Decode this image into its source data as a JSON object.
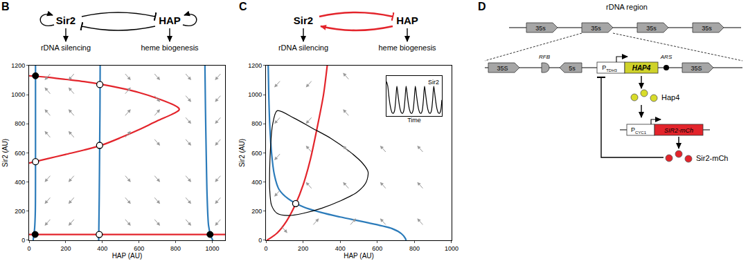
{
  "chart_data": [
    {
      "type": "line",
      "x_label": "HAP (AU)",
      "y_label": "Sir2 (AU)",
      "xlim": [
        0,
        1070
      ],
      "ylim": [
        0,
        1200
      ],
      "xticks": [
        0,
        200,
        400,
        600,
        800,
        1000
      ],
      "yticks": [
        0,
        200,
        400,
        600,
        800,
        1000,
        1200
      ],
      "grid": false,
      "series": [
        {
          "type": "line",
          "color": "#2b7bba",
          "x": [
            35,
            35,
            34,
            30,
            22
          ],
          "values": [
            1200,
            600,
            200,
            80,
            0
          ]
        },
        {
          "type": "line",
          "color": "#2b7bba",
          "x": [
            388,
            387,
            385,
            383,
            380
          ],
          "values": [
            1200,
            900,
            600,
            300,
            0
          ]
        },
        {
          "type": "line",
          "color": "#2b7bba",
          "x": [
            960,
            963,
            967,
            972,
            980,
            992,
            1003
          ],
          "values": [
            1200,
            900,
            600,
            300,
            100,
            30,
            0
          ]
        },
        {
          "type": "line",
          "color": "#e3242b",
          "x": [
            0,
            1070
          ],
          "values": [
            40,
            40
          ]
        },
        {
          "type": "line",
          "color": "#e3242b",
          "x": [
            0,
            100,
            200,
            300,
            400,
            500,
            600,
            700,
            780,
            815,
            820,
            815,
            780,
            700,
            600,
            500,
            400,
            300,
            200,
            100,
            0
          ],
          "values": [
            1130,
            1120,
            1105,
            1090,
            1070,
            1045,
            1015,
            975,
            935,
            910,
            900,
            890,
            865,
            820,
            760,
            705,
            655,
            620,
            590,
            560,
            530
          ]
        },
        {
          "type": "scatter",
          "marker": "filled",
          "color": "#000000",
          "x": [
            35,
            33,
            988
          ],
          "values": [
            1130,
            40,
            40
          ]
        },
        {
          "type": "scatter",
          "marker": "open",
          "color": "#000000",
          "x": [
            386,
            385,
            35,
            383
          ],
          "values": [
            1070,
            652,
            540,
            40
          ]
        }
      ],
      "arrows": {
        "x": [
          120,
          120,
          120,
          120,
          120,
          120,
          120,
          250,
          250,
          250,
          250,
          250,
          250,
          250,
          520,
          520,
          520,
          520,
          520,
          520,
          520,
          680,
          680,
          680,
          680,
          680,
          680,
          680,
          850,
          850,
          850,
          850,
          850,
          850,
          850,
          1050,
          1050,
          1050,
          1050,
          1050,
          1050,
          1050
        ],
        "y": [
          150,
          300,
          450,
          700,
          850,
          1000,
          1150,
          150,
          300,
          450,
          700,
          850,
          1000,
          1150,
          150,
          300,
          450,
          700,
          850,
          1000,
          1150,
          150,
          300,
          450,
          700,
          850,
          1000,
          1150,
          150,
          300,
          450,
          700,
          850,
          1000,
          1150,
          150,
          300,
          450,
          700,
          850,
          1000,
          1150
        ],
        "dx": [
          -35,
          -35,
          -35,
          -35,
          -35,
          -35,
          -35,
          -35,
          -35,
          -35,
          -35,
          -35,
          -35,
          -35,
          35,
          35,
          35,
          35,
          35,
          35,
          35,
          35,
          35,
          35,
          35,
          35,
          35,
          35,
          35,
          35,
          35,
          35,
          35,
          35,
          35,
          -35,
          -35,
          -35,
          -35,
          -35,
          -35,
          -35
        ],
        "dy": [
          -50,
          -50,
          -50,
          50,
          50,
          50,
          -50,
          -50,
          -50,
          -50,
          50,
          50,
          50,
          -50,
          -50,
          -50,
          -50,
          50,
          50,
          50,
          -50,
          -50,
          -50,
          -50,
          -50,
          50,
          -50,
          -50,
          -50,
          -50,
          -50,
          -50,
          -50,
          -50,
          -50,
          -50,
          -50,
          -50,
          -50,
          -50,
          -50,
          -50
        ]
      }
    },
    {
      "type": "line",
      "x_label": "HAP (AU)",
      "y_label": "Sir2 (AU)",
      "xlim": [
        0,
        1000
      ],
      "ylim": [
        0,
        1200
      ],
      "xticks": [
        0,
        200,
        400,
        600,
        800,
        1000
      ],
      "yticks": [
        0,
        200,
        400,
        600,
        800,
        1000,
        1200
      ],
      "grid": false,
      "series": [
        {
          "type": "line",
          "color": "#2b7bba",
          "x": [
            12,
            15,
            20,
            30,
            45,
            70,
            120,
            200,
            300,
            400,
            550,
            680,
            730,
            750,
            755
          ],
          "values": [
            1200,
            1000,
            800,
            600,
            450,
            350,
            285,
            230,
            190,
            160,
            120,
            80,
            45,
            15,
            0
          ]
        },
        {
          "type": "line",
          "color": "#e3242b",
          "x": [
            5,
            60,
            110,
            160,
            200,
            240,
            280,
            310,
            330
          ],
          "values": [
            0,
            50,
            130,
            250,
            380,
            560,
            800,
            1000,
            1200
          ]
        },
        {
          "type": "line",
          "color": "#000000",
          "x": [
            60,
            150,
            250,
            350,
            450,
            520,
            550,
            540,
            490,
            400,
            300,
            200,
            120,
            60,
            30,
            20,
            20,
            25,
            35,
            60
          ],
          "values": [
            890,
            840,
            770,
            700,
            610,
            530,
            470,
            400,
            330,
            270,
            220,
            185,
            170,
            185,
            240,
            350,
            500,
            650,
            790,
            890
          ]
        },
        {
          "type": "scatter",
          "marker": "open",
          "color": "#000000",
          "x": [
            160
          ],
          "values": [
            252
          ]
        }
      ],
      "arrows": {
        "x": [
          80,
          80,
          80,
          80,
          80,
          250,
          250,
          250,
          250,
          250,
          450,
          450,
          450,
          450,
          450,
          650,
          650,
          650,
          850,
          850,
          850
        ],
        "y": [
          100,
          350,
          600,
          850,
          1100,
          100,
          350,
          600,
          850,
          1100,
          100,
          350,
          600,
          850,
          1100,
          100,
          350,
          600,
          100,
          350,
          600
        ],
        "dx": [
          35,
          -35,
          -35,
          -35,
          -35,
          35,
          -35,
          -35,
          -35,
          -35,
          35,
          -35,
          -35,
          -35,
          -35,
          -35,
          -35,
          -35,
          -35,
          -35,
          -35
        ],
        "dy": [
          -50,
          -50,
          -50,
          -50,
          -50,
          50,
          50,
          50,
          -50,
          -50,
          50,
          50,
          50,
          50,
          50,
          50,
          50,
          50,
          50,
          50,
          50
        ]
      }
    },
    {
      "type": "line",
      "x_label": "Time",
      "xlim": [
        0,
        48
      ],
      "ylim": [
        100,
        1150
      ],
      "tick_labels": false,
      "legend": "upper right",
      "series": [
        {
          "name": "Sir2",
          "type": "line",
          "color": "#000000",
          "x": [
            0,
            1,
            2,
            3,
            4,
            5,
            6,
            7,
            8,
            9,
            10,
            11,
            12,
            13,
            14,
            15,
            16,
            17,
            18,
            19,
            20,
            21,
            22,
            23,
            24,
            25,
            26,
            27,
            28,
            29,
            30,
            31,
            32,
            33,
            34,
            35,
            36,
            37,
            38,
            39,
            40,
            41,
            42,
            43,
            44,
            45,
            46,
            47,
            48
          ],
          "values": [
            1000,
            900,
            640,
            410,
            260,
            180,
            170,
            240,
            520,
            880,
            650,
            420,
            260,
            180,
            170,
            240,
            520,
            880,
            650,
            420,
            260,
            180,
            170,
            240,
            520,
            880,
            650,
            420,
            260,
            180,
            170,
            240,
            520,
            880,
            650,
            420,
            260,
            180,
            170,
            240,
            520,
            880,
            650,
            420,
            260,
            180,
            170,
            240,
            520
          ]
        }
      ]
    }
  ],
  "diagrams": {
    "B": {
      "label": "B",
      "nodes": [
        "Sir2",
        "HAP"
      ],
      "outputs": [
        "rDNA silencing",
        "heme biogenesis"
      ]
    },
    "C": {
      "label": "C",
      "nodes": [
        "Sir2",
        "HAP"
      ],
      "outputs": [
        "rDNA silencing",
        "heme biogenesis"
      ]
    },
    "D": {
      "label": "D",
      "title": "rDNA region",
      "repeats": [
        "35s",
        "35s",
        "35s",
        "35s"
      ],
      "locus": {
        "left_gene": "35S",
        "rfb": "RFB",
        "gene_5s": "5s",
        "promoter": {
          "text": "P",
          "sub": "TDH3"
        },
        "gene": "HAP4",
        "ars": "ARS",
        "right_gene": "35S"
      },
      "protein": "Hap4",
      "reporter": {
        "promoter": {
          "text": "P",
          "sub": "CYC1"
        },
        "gene": "SIR2-mCh"
      },
      "reporter_protein": "Sir2-mCh"
    }
  }
}
